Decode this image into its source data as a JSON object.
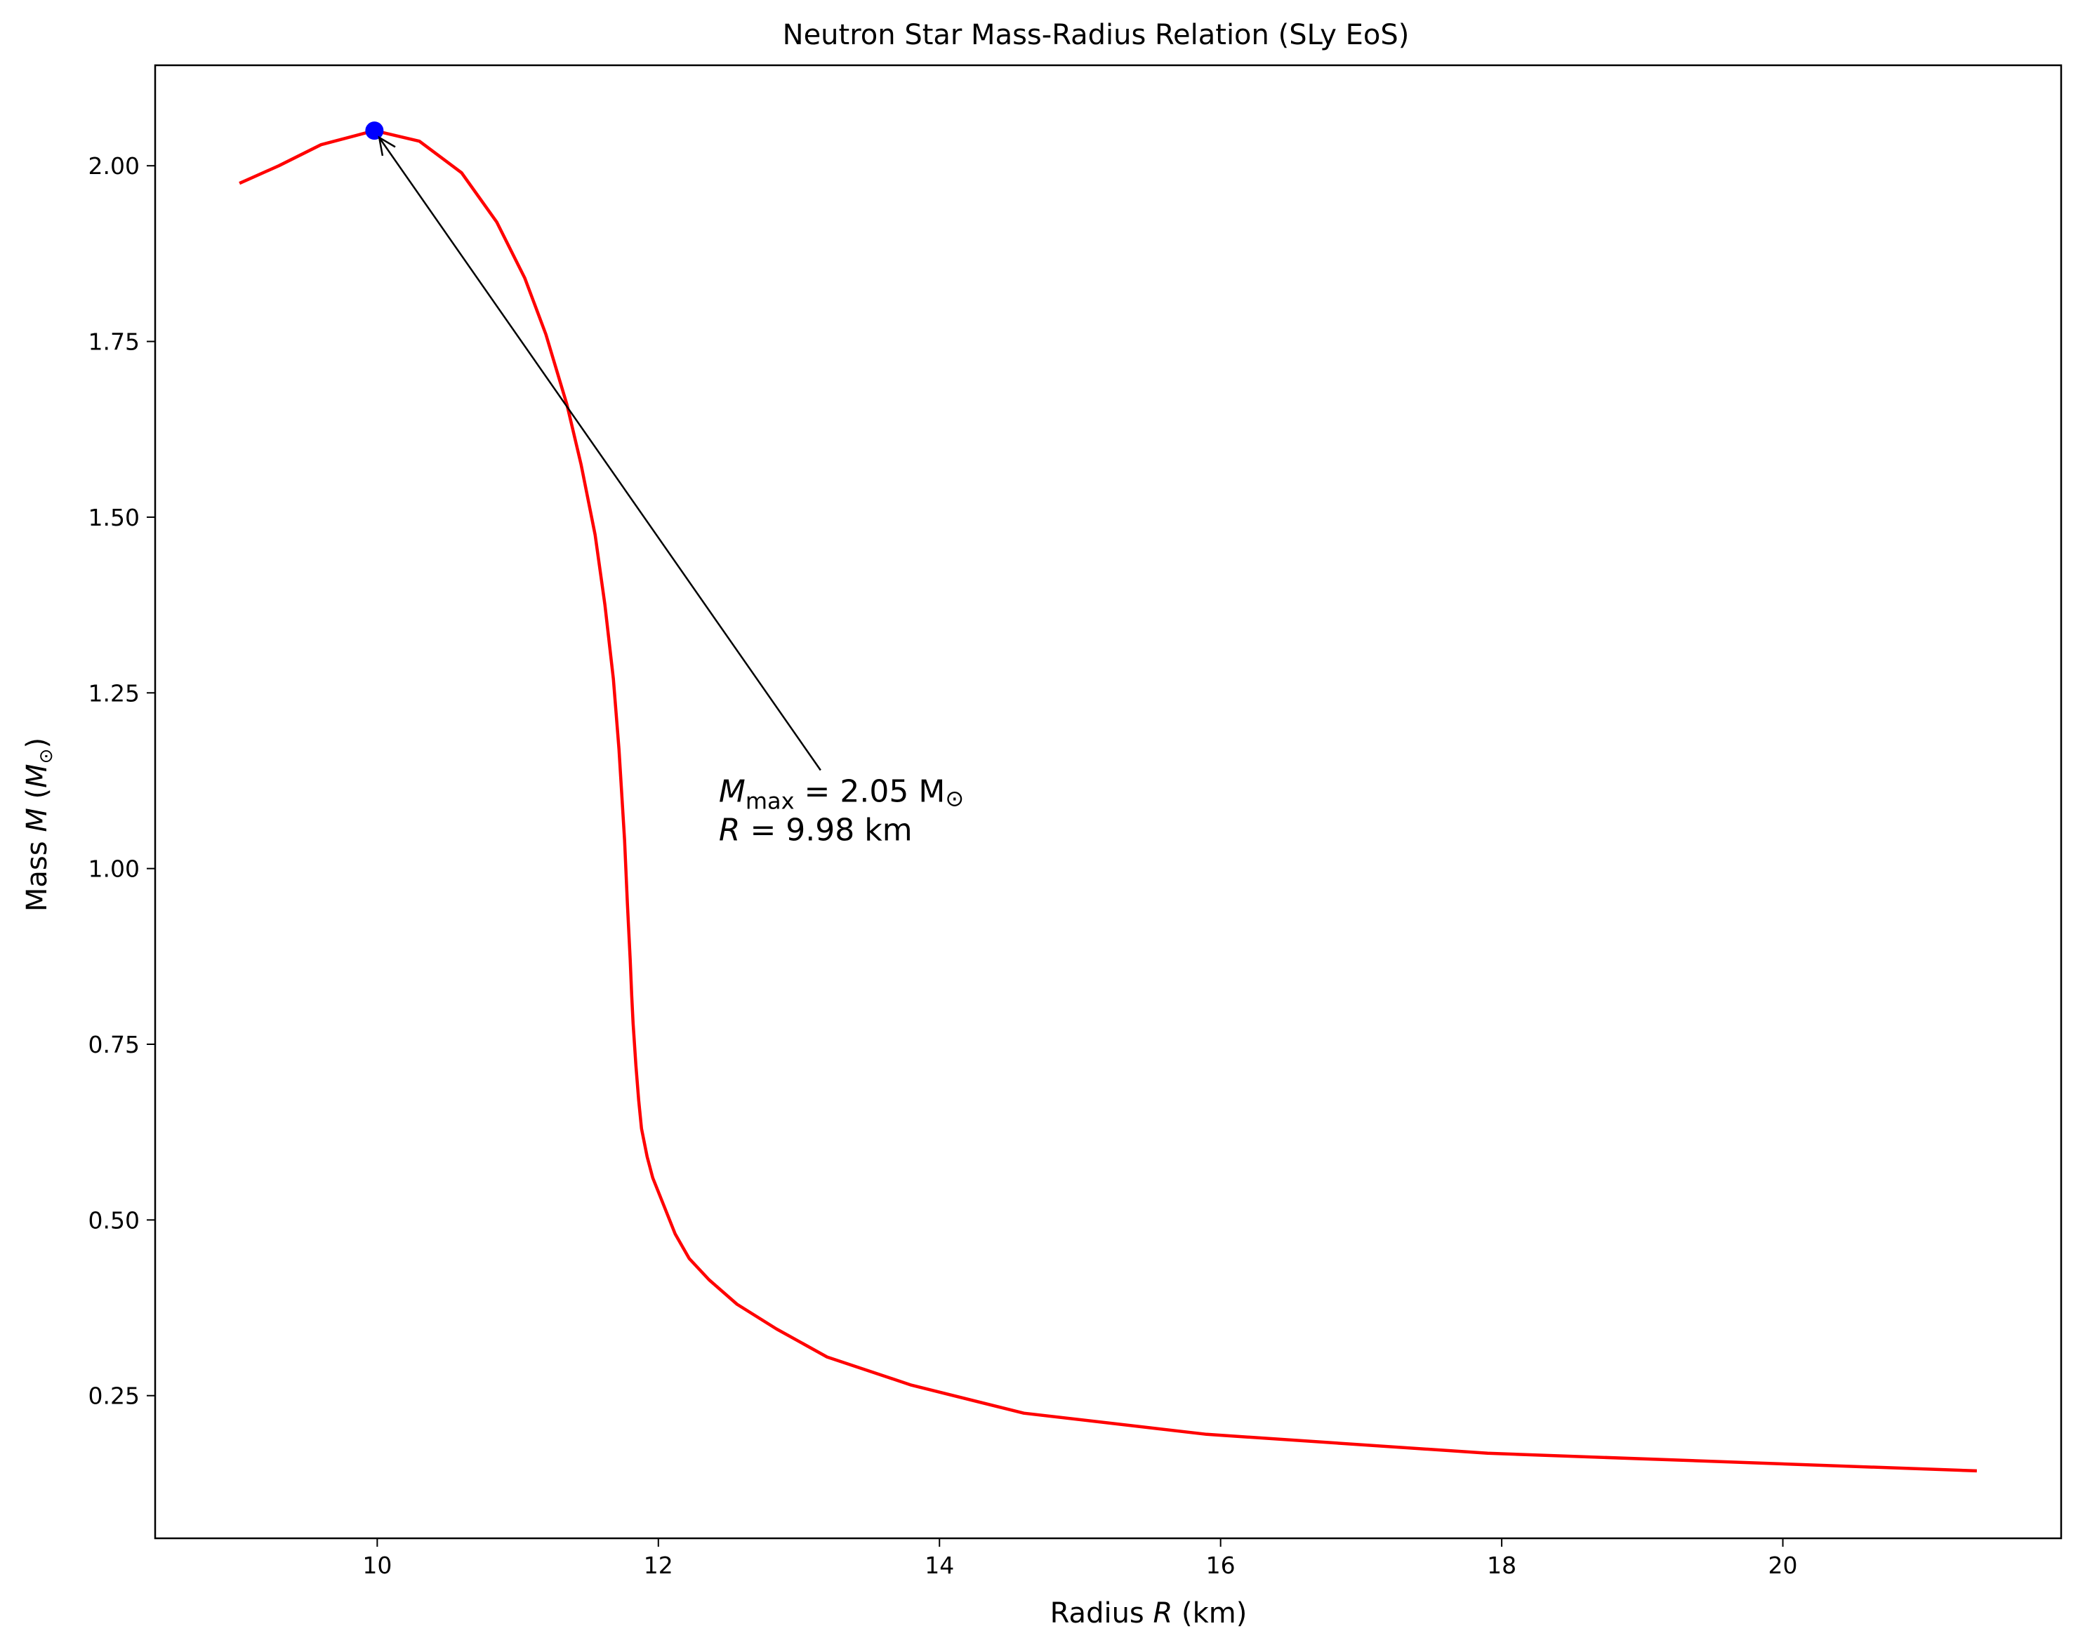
{
  "chart_data": {
    "type": "line",
    "title": "Neutron Star Mass-Radius Relation (SLy EoS)",
    "xlabel_prefix": "Radius ",
    "xlabel_var": "R",
    "xlabel_suffix": " (km)",
    "ylabel_prefix": "Mass ",
    "ylabel_var": "M",
    "ylabel_open": " (",
    "ylabel_unit": "M",
    "ylabel_sub": "⊙",
    "ylabel_close": ")",
    "xlim": [
      8.42,
      21.98
    ],
    "ylim": [
      0.047,
      2.143
    ],
    "xticks": [
      10,
      12,
      14,
      16,
      18,
      20
    ],
    "xtick_labels": [
      "10",
      "12",
      "14",
      "16",
      "18",
      "20"
    ],
    "yticks": [
      0.25,
      0.5,
      0.75,
      1.0,
      1.25,
      1.5,
      1.75,
      2.0
    ],
    "ytick_labels": [
      "0.25",
      "0.50",
      "0.75",
      "1.00",
      "1.25",
      "1.50",
      "1.75",
      "2.00"
    ],
    "grid": false,
    "series": [
      {
        "color": "#ff0000",
        "x": [
          9.02,
          9.3,
          9.6,
          9.98,
          10.3,
          10.6,
          10.85,
          11.05,
          11.2,
          11.35,
          11.45,
          11.55,
          11.62,
          11.68,
          11.72,
          11.76,
          11.78,
          11.8,
          11.81,
          11.82,
          11.84,
          11.86,
          11.88,
          11.92,
          11.96,
          12.04,
          12.12,
          12.22,
          12.36,
          12.56,
          12.84,
          13.2,
          13.8,
          14.6,
          15.9,
          17.9,
          21.38
        ],
        "y": [
          1.975,
          2.0,
          2.03,
          2.05,
          2.035,
          1.99,
          1.92,
          1.84,
          1.76,
          1.66,
          1.575,
          1.475,
          1.375,
          1.27,
          1.17,
          1.04,
          0.95,
          0.87,
          0.82,
          0.78,
          0.72,
          0.67,
          0.63,
          0.59,
          0.56,
          0.52,
          0.48,
          0.445,
          0.415,
          0.38,
          0.345,
          0.305,
          0.265,
          0.225,
          0.195,
          0.168,
          0.143
        ]
      }
    ],
    "max_point": {
      "x": 9.98,
      "y": 2.05,
      "color": "#0000ff"
    },
    "annotation": {
      "text_x": 12.43,
      "text_y": 1.095,
      "line1_var": "M",
      "line1_sub": "max",
      "line1_rest": " = 2.05 M",
      "line1_sym": "⊙",
      "line2_var": "R",
      "line2_rest": " = 9.98 km"
    }
  }
}
